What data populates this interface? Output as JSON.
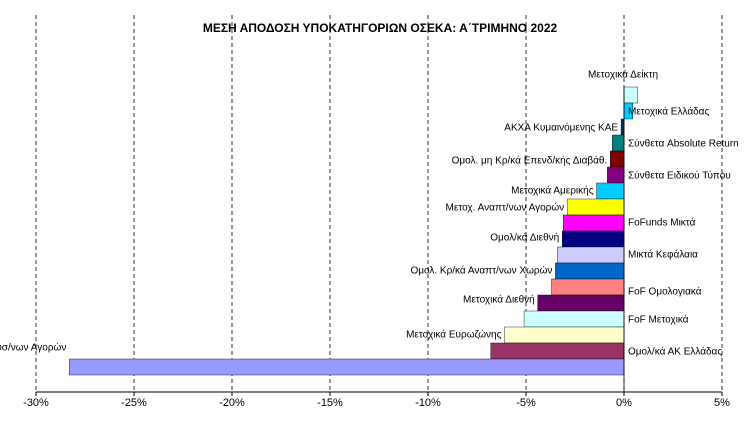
{
  "chart_data": {
    "type": "bar",
    "orientation": "horizontal",
    "title": "ΜΕΣΗ ΑΠΟΔΟΣΗ ΥΠΟΚΑΤΗΓΟΡΙΩΝ  ΟΣΕΚΑ: Α΄ΤΡΙΜΗΝΟ 2022",
    "categories": [
      "Μετοχικά Δείκτη",
      "Μετοχικά Ελλάδας",
      "ΑΚΧΑ Κυμαινόμενης ΚΑΕ",
      "Σύνθετα Absolute Return",
      "Ομολ. μη Κρ/κά Επενδ/κής Διαβάθ.",
      "Σύνθετα Ειδικού Τύπου",
      "Μετοχικά Αμερικής",
      "Μετοχ. Αναπτ/νων Αγορών",
      "FoFunds Μικτά",
      "Ομολ/κά Διεθνή",
      "Μικτά Κεφάλαια",
      "Ομολ. Κρ/κά Αναπτ/νων Χωρών",
      "FoF Ομολογιακά",
      "Μετοχικά Διεθνή",
      "FoF Μετοχικά",
      "Μετοχικά Ευρωζώνης",
      "Ομολ/κά ΑΚ Ελλάδας",
      "Μετοχ. Αναπτυσ/νων Αγορών"
    ],
    "values": [
      0.7,
      0.45,
      -0.15,
      -0.6,
      -0.7,
      -0.85,
      -1.4,
      -2.9,
      -3.1,
      -3.15,
      -3.4,
      -3.5,
      -3.7,
      -4.4,
      -5.1,
      -6.1,
      -6.8,
      -28.3
    ],
    "colors": [
      "#ccffff",
      "#00ccff",
      "#003366",
      "#008080",
      "#800000",
      "#800080",
      "#00ccff",
      "#ffff00",
      "#ff00ff",
      "#000080",
      "#ccccff",
      "#0066cc",
      "#ff8080",
      "#660066",
      "#ccffff",
      "#ffffcc",
      "#993366",
      "#9999ff"
    ],
    "xlim": [
      -30,
      5
    ],
    "xticks": [
      {
        "value": -30,
        "label": "-30%"
      },
      {
        "value": -25,
        "label": "-25%"
      },
      {
        "value": -20,
        "label": "-20%"
      },
      {
        "value": -15,
        "label": "-15%"
      },
      {
        "value": -10,
        "label": "-10%"
      },
      {
        "value": -5,
        "label": "-5%"
      },
      {
        "value": 0,
        "label": "0%"
      },
      {
        "value": 5,
        "label": "5%"
      }
    ],
    "grid": true
  }
}
